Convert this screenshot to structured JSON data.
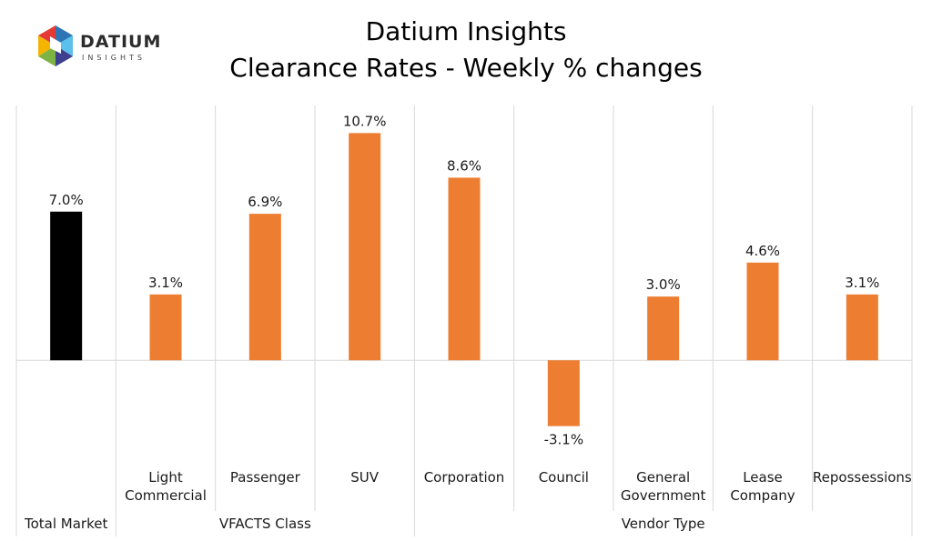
{
  "header": {
    "title": "Datium Insights",
    "subtitle": "Clearance Rates - Weekly % changes",
    "logo_word": "DATIUM",
    "logo_sub": "INSIGHTS"
  },
  "chart_data": {
    "type": "bar",
    "title": "Datium Insights",
    "subtitle": "Clearance Rates - Weekly % changes",
    "categories": [
      [
        "Total Market"
      ],
      [
        "Light",
        "Commercial"
      ],
      [
        "Passenger"
      ],
      [
        "SUV"
      ],
      [
        "Corporation"
      ],
      [
        "Council"
      ],
      [
        "General",
        "Government"
      ],
      [
        "Lease",
        "Company"
      ],
      [
        "Repossessions"
      ]
    ],
    "values": [
      7.0,
      3.1,
      6.9,
      10.7,
      8.6,
      -3.1,
      3.0,
      4.6,
      3.1
    ],
    "labels": [
      "7.0%",
      "3.1%",
      "6.9%",
      "10.7%",
      "8.6%",
      "-3.1%",
      "3.0%",
      "4.6%",
      "3.1%"
    ],
    "groups": [
      {
        "name": "Total Market",
        "start": 0,
        "end": 0
      },
      {
        "name": "VFACTS Class",
        "start": 1,
        "end": 3
      },
      {
        "name": "Vendor Type",
        "start": 4,
        "end": 8
      }
    ],
    "colors": [
      "#000000",
      "#ED7D31",
      "#ED7D31",
      "#ED7D31",
      "#ED7D31",
      "#ED7D31",
      "#ED7D31",
      "#ED7D31",
      "#ED7D31"
    ],
    "ylim": [
      -4.7,
      12
    ],
    "grid": false,
    "legend": "none"
  }
}
